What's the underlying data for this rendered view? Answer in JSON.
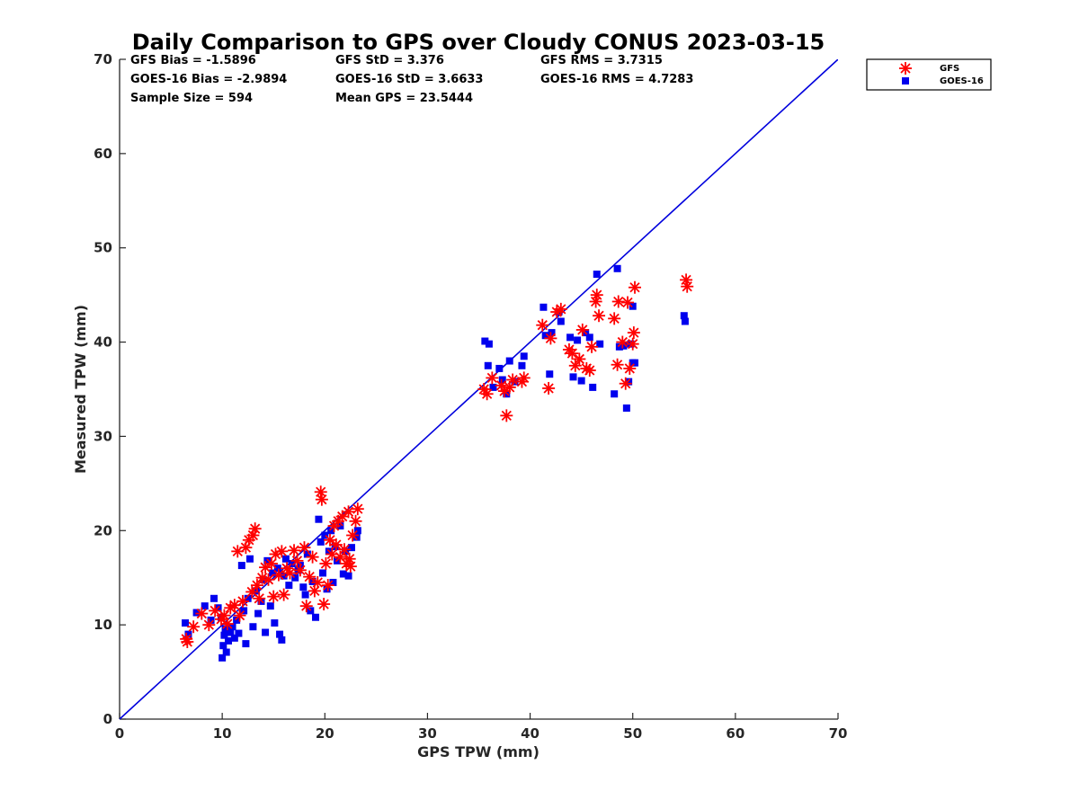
{
  "chart_data": {
    "type": "scatter",
    "title": "Daily Comparison to GPS over Cloudy CONUS 2023-03-15",
    "xlabel": "GPS TPW (mm)",
    "ylabel": "Measured TPW (mm)",
    "xlim": [
      0,
      70
    ],
    "ylim": [
      0,
      70
    ],
    "xticks": [
      "0",
      "10",
      "20",
      "30",
      "40",
      "50",
      "60",
      "70"
    ],
    "yticks": [
      "0",
      "10",
      "20",
      "30",
      "40",
      "50",
      "60",
      "70"
    ],
    "grid": false,
    "legend_position": "outside-top-right",
    "reference_line": {
      "name": "1:1 line",
      "x": [
        0,
        70
      ],
      "y": [
        0,
        70
      ],
      "color": "#0000dd"
    },
    "stats": [
      "GFS Bias = -1.5896",
      "GFS StD = 3.376",
      "GFS RMS = 3.7315",
      "GOES-16 Bias = -2.9894",
      "GOES-16 StD = 3.6633",
      "GOES-16 RMS = 4.7283",
      "Sample Size = 594",
      "Mean GPS = 23.5444"
    ],
    "series": [
      {
        "name": "GFS",
        "marker": "asterisk",
        "color": "#ff0000",
        "points": [
          [
            6.5,
            8.5
          ],
          [
            6.6,
            8.2
          ],
          [
            7.2,
            9.8
          ],
          [
            8.0,
            11.2
          ],
          [
            8.7,
            10.0
          ],
          [
            9.3,
            11.5
          ],
          [
            9.9,
            10.6
          ],
          [
            10.2,
            11.0
          ],
          [
            10.5,
            10.1
          ],
          [
            10.8,
            11.8
          ],
          [
            11.2,
            12.1
          ],
          [
            11.5,
            17.8
          ],
          [
            11.7,
            11.0
          ],
          [
            12.0,
            12.5
          ],
          [
            12.3,
            18.2
          ],
          [
            12.6,
            19.0
          ],
          [
            12.9,
            13.5
          ],
          [
            13.0,
            19.5
          ],
          [
            13.2,
            20.2
          ],
          [
            13.4,
            14.2
          ],
          [
            13.6,
            12.8
          ],
          [
            13.9,
            15.0
          ],
          [
            14.2,
            16.1
          ],
          [
            14.5,
            14.8
          ],
          [
            14.8,
            16.5
          ],
          [
            15.0,
            13.0
          ],
          [
            15.2,
            17.5
          ],
          [
            15.5,
            15.3
          ],
          [
            15.8,
            17.8
          ],
          [
            16.0,
            13.2
          ],
          [
            16.3,
            16.0
          ],
          [
            16.6,
            15.5
          ],
          [
            17.0,
            17.9
          ],
          [
            17.3,
            16.8
          ],
          [
            17.6,
            15.8
          ],
          [
            18.0,
            18.2
          ],
          [
            18.2,
            12.0
          ],
          [
            18.5,
            15.1
          ],
          [
            18.8,
            17.2
          ],
          [
            19.0,
            13.6
          ],
          [
            19.3,
            14.5
          ],
          [
            19.6,
            24.1
          ],
          [
            19.7,
            23.3
          ],
          [
            19.9,
            12.2
          ],
          [
            20.1,
            16.5
          ],
          [
            20.3,
            14.2
          ],
          [
            20.5,
            19.0
          ],
          [
            20.7,
            17.5
          ],
          [
            20.9,
            20.5
          ],
          [
            21.1,
            18.5
          ],
          [
            21.3,
            21.0
          ],
          [
            21.5,
            17.2
          ],
          [
            21.7,
            21.5
          ],
          [
            21.9,
            18.0
          ],
          [
            22.1,
            16.5
          ],
          [
            22.3,
            22.0
          ],
          [
            22.4,
            17.0
          ],
          [
            22.5,
            16.2
          ],
          [
            22.7,
            19.5
          ],
          [
            23.0,
            21.0
          ],
          [
            23.2,
            22.3
          ],
          [
            35.5,
            35.0
          ],
          [
            35.8,
            34.5
          ],
          [
            36.3,
            36.2
          ],
          [
            37.2,
            35.4
          ],
          [
            37.5,
            34.8
          ],
          [
            37.7,
            32.2
          ],
          [
            38.0,
            35.2
          ],
          [
            38.3,
            36.0
          ],
          [
            39.2,
            35.8
          ],
          [
            39.4,
            36.2
          ],
          [
            41.2,
            41.8
          ],
          [
            41.8,
            35.1
          ],
          [
            42.0,
            40.4
          ],
          [
            42.6,
            43.2
          ],
          [
            43.0,
            43.5
          ],
          [
            43.8,
            39.2
          ],
          [
            44.1,
            38.8
          ],
          [
            44.4,
            37.5
          ],
          [
            44.8,
            38.2
          ],
          [
            45.1,
            41.3
          ],
          [
            45.5,
            37.2
          ],
          [
            45.8,
            37.0
          ],
          [
            46.0,
            39.5
          ],
          [
            46.4,
            44.3
          ],
          [
            46.5,
            45.0
          ],
          [
            46.7,
            42.8
          ],
          [
            48.2,
            42.5
          ],
          [
            48.5,
            37.6
          ],
          [
            48.6,
            44.3
          ],
          [
            49.0,
            40.0
          ],
          [
            49.3,
            35.6
          ],
          [
            49.5,
            44.2
          ],
          [
            49.7,
            37.2
          ],
          [
            50.0,
            39.8
          ],
          [
            50.1,
            41.0
          ],
          [
            50.2,
            45.8
          ],
          [
            55.2,
            46.6
          ],
          [
            55.3,
            45.9
          ]
        ]
      },
      {
        "name": "GOES-16",
        "marker": "square",
        "color": "#0000ee",
        "points": [
          [
            6.4,
            10.2
          ],
          [
            6.7,
            9.0
          ],
          [
            7.5,
            11.3
          ],
          [
            8.3,
            12.0
          ],
          [
            8.9,
            10.5
          ],
          [
            9.2,
            12.8
          ],
          [
            9.6,
            11.8
          ],
          [
            9.9,
            10.8
          ],
          [
            10.0,
            6.5
          ],
          [
            10.1,
            7.8
          ],
          [
            10.2,
            8.9
          ],
          [
            10.3,
            9.6
          ],
          [
            10.4,
            7.1
          ],
          [
            10.6,
            8.3
          ],
          [
            10.8,
            9.2
          ],
          [
            11.0,
            9.8
          ],
          [
            11.2,
            8.6
          ],
          [
            11.4,
            10.5
          ],
          [
            11.6,
            9.1
          ],
          [
            11.9,
            16.3
          ],
          [
            12.1,
            11.5
          ],
          [
            12.3,
            8.0
          ],
          [
            12.5,
            12.8
          ],
          [
            12.7,
            17.0
          ],
          [
            13.0,
            9.8
          ],
          [
            13.3,
            13.6
          ],
          [
            13.5,
            11.2
          ],
          [
            13.8,
            12.5
          ],
          [
            14.0,
            14.8
          ],
          [
            14.2,
            9.2
          ],
          [
            14.4,
            16.8
          ],
          [
            14.7,
            12.0
          ],
          [
            14.9,
            15.5
          ],
          [
            15.1,
            10.2
          ],
          [
            15.4,
            16.0
          ],
          [
            15.6,
            9.0
          ],
          [
            15.8,
            8.4
          ],
          [
            16.0,
            15.2
          ],
          [
            16.2,
            17.0
          ],
          [
            16.5,
            14.2
          ],
          [
            16.8,
            16.5
          ],
          [
            17.1,
            15.0
          ],
          [
            17.4,
            15.8
          ],
          [
            17.6,
            16.3
          ],
          [
            17.9,
            14.0
          ],
          [
            18.1,
            13.2
          ],
          [
            18.3,
            17.5
          ],
          [
            18.6,
            11.5
          ],
          [
            18.8,
            14.6
          ],
          [
            19.1,
            10.8
          ],
          [
            19.4,
            21.2
          ],
          [
            19.6,
            18.8
          ],
          [
            19.8,
            15.5
          ],
          [
            20.0,
            19.5
          ],
          [
            20.2,
            13.8
          ],
          [
            20.4,
            17.8
          ],
          [
            20.6,
            20.0
          ],
          [
            20.8,
            14.5
          ],
          [
            21.0,
            18.3
          ],
          [
            21.2,
            16.8
          ],
          [
            21.5,
            20.5
          ],
          [
            21.8,
            15.4
          ],
          [
            22.0,
            17.8
          ],
          [
            22.3,
            15.2
          ],
          [
            22.6,
            18.2
          ],
          [
            23.1,
            19.3
          ],
          [
            23.2,
            20.0
          ],
          [
            35.6,
            40.1
          ],
          [
            35.9,
            37.5
          ],
          [
            36.0,
            39.8
          ],
          [
            36.4,
            35.2
          ],
          [
            37.0,
            37.2
          ],
          [
            37.3,
            36.0
          ],
          [
            37.7,
            34.5
          ],
          [
            38.0,
            38.0
          ],
          [
            38.5,
            35.8
          ],
          [
            39.2,
            37.5
          ],
          [
            39.4,
            38.5
          ],
          [
            41.3,
            43.7
          ],
          [
            41.5,
            40.7
          ],
          [
            41.9,
            36.6
          ],
          [
            42.1,
            41.0
          ],
          [
            42.8,
            43.2
          ],
          [
            43.0,
            42.2
          ],
          [
            43.9,
            40.5
          ],
          [
            44.2,
            36.3
          ],
          [
            44.6,
            40.2
          ],
          [
            45.0,
            35.9
          ],
          [
            45.4,
            41.0
          ],
          [
            45.8,
            40.5
          ],
          [
            46.1,
            35.2
          ],
          [
            46.5,
            47.2
          ],
          [
            46.8,
            39.8
          ],
          [
            48.2,
            34.5
          ],
          [
            48.5,
            47.8
          ],
          [
            48.7,
            39.5
          ],
          [
            49.1,
            39.6
          ],
          [
            49.4,
            33.0
          ],
          [
            49.6,
            35.8
          ],
          [
            49.8,
            39.8
          ],
          [
            50.0,
            37.8
          ],
          [
            50.0,
            43.8
          ],
          [
            50.2,
            37.8
          ],
          [
            55.0,
            42.8
          ],
          [
            55.1,
            42.2
          ]
        ]
      }
    ]
  }
}
